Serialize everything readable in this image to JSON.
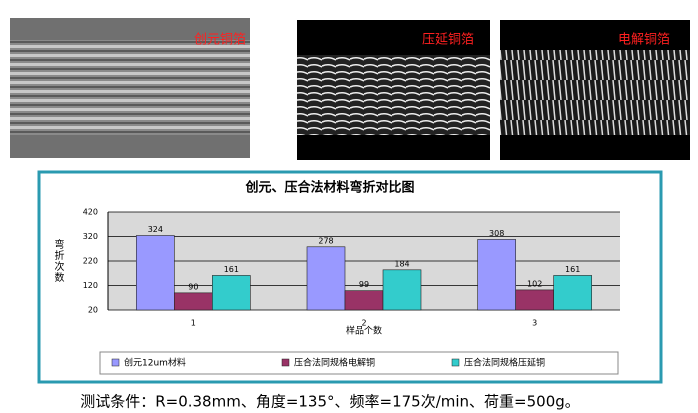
{
  "images": [
    {
      "label": "创元铜箔"
    },
    {
      "label": "压延铜箔"
    },
    {
      "label": "电解铜箔"
    }
  ],
  "chart_data": {
    "type": "bar",
    "title": "创元、压合法材料弯折对比图",
    "y_label": "弯折次数",
    "x_label": "样品个数",
    "categories": [
      "1",
      "2",
      "3"
    ],
    "series": [
      {
        "name": "创元12um材料",
        "color": "#9999ff",
        "values": [
          324,
          278,
          308
        ]
      },
      {
        "name": "压合法同规格电解铜",
        "color": "#993366",
        "values": [
          90,
          99,
          102
        ]
      },
      {
        "name": "压合法同规格压延铜",
        "color": "#33cccc",
        "values": [
          161,
          184,
          161
        ]
      }
    ],
    "ylim": [
      20,
      420
    ],
    "yticks": [
      20,
      120,
      220,
      320,
      420
    ],
    "grid": true
  },
  "caption": "测试条件：R=0.38mm、角度=135°、频率=175次/min、荷重=500g。"
}
